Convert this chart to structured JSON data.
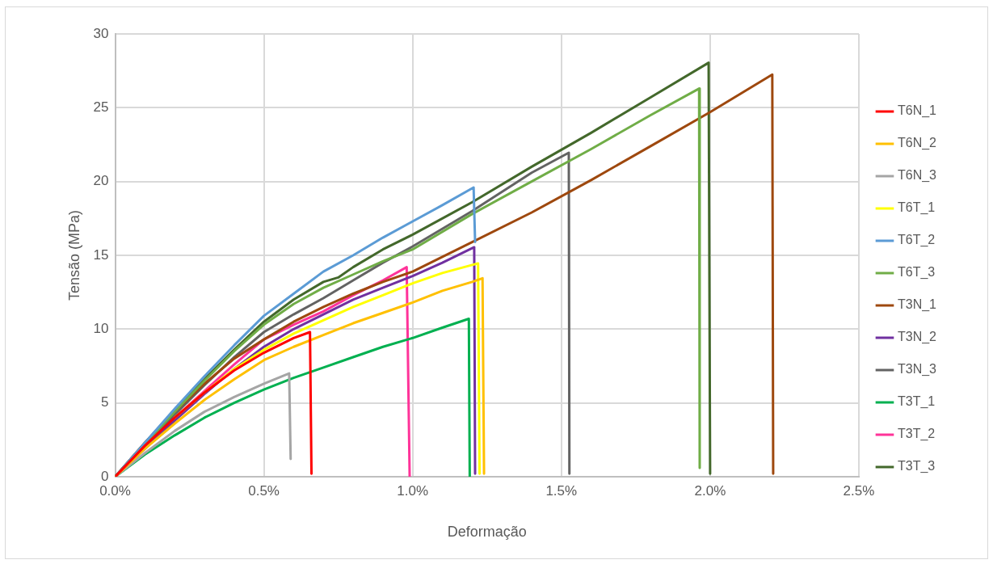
{
  "chart_data": {
    "type": "line",
    "xlabel": "Deformação",
    "ylabel": "Tensão (MPa)",
    "xlim": [
      0,
      2.5
    ],
    "xticks": [
      {
        "value": 0,
        "label": "0.0%"
      },
      {
        "value": 0.5,
        "label": "0.5%"
      },
      {
        "value": 1,
        "label": "1.0%"
      },
      {
        "value": 1.5,
        "label": "1.5%"
      },
      {
        "value": 2,
        "label": "2.0%"
      },
      {
        "value": 2.5,
        "label": "2.5%"
      }
    ],
    "ylim": [
      0,
      30
    ],
    "yticks": [
      0,
      5,
      10,
      15,
      20,
      25,
      30
    ],
    "grid": true,
    "legend": "right",
    "marker": "none",
    "line_style": "solid",
    "series": [
      {
        "name": "T6N_1",
        "color": "#ff0000",
        "x": [
          0,
          0.1,
          0.2,
          0.3,
          0.4,
          0.5,
          0.6,
          0.655,
          0.66
        ],
        "values": [
          0,
          2.1,
          4.0,
          5.7,
          7.2,
          8.4,
          9.4,
          9.8,
          0.2
        ]
      },
      {
        "name": "T6N_2",
        "color": "#ffc000",
        "x": [
          0,
          0.1,
          0.2,
          0.3,
          0.4,
          0.5,
          0.6,
          0.7,
          0.8,
          0.9,
          1.0,
          1.1,
          1.2,
          1.235,
          1.24
        ],
        "values": [
          0,
          1.9,
          3.6,
          5.2,
          6.6,
          7.9,
          8.8,
          9.6,
          10.4,
          11.1,
          11.8,
          12.6,
          13.2,
          13.45,
          0.2
        ]
      },
      {
        "name": "T6N_3",
        "color": "#a5a5a5",
        "x": [
          0,
          0.1,
          0.2,
          0.3,
          0.4,
          0.5,
          0.585,
          0.59
        ],
        "values": [
          0,
          1.6,
          3.1,
          4.4,
          5.4,
          6.3,
          7.0,
          1.2
        ]
      },
      {
        "name": "T6T_1",
        "color": "#ffff00",
        "x": [
          0.2,
          0.3,
          0.4,
          0.5,
          0.6,
          0.7,
          0.8,
          0.9,
          1.0,
          1.1,
          1.2,
          1.22,
          1.225
        ],
        "values": [
          4.0,
          5.7,
          7.3,
          8.6,
          9.7,
          10.6,
          11.5,
          12.3,
          13.1,
          13.8,
          14.35,
          14.45,
          0.2
        ]
      },
      {
        "name": "T6T_2",
        "color": "#5b9bd5",
        "x": [
          0,
          0.1,
          0.2,
          0.3,
          0.4,
          0.5,
          0.6,
          0.7,
          0.8,
          0.9,
          1.0,
          1.1,
          1.205,
          1.21
        ],
        "values": [
          0,
          2.3,
          4.6,
          6.8,
          8.9,
          10.9,
          12.4,
          13.9,
          15.0,
          16.2,
          17.3,
          18.4,
          19.6,
          15.9
        ]
      },
      {
        "name": "T6T_3",
        "color": "#70ad47",
        "x": [
          0,
          0.1,
          0.2,
          0.3,
          0.4,
          0.5,
          0.6,
          0.7,
          0.8,
          0.9,
          1.0,
          1.2,
          1.4,
          1.6,
          1.8,
          1.963,
          1.965
        ],
        "values": [
          0,
          2.2,
          4.4,
          6.5,
          8.5,
          10.3,
          11.7,
          12.8,
          13.7,
          14.6,
          15.4,
          17.8,
          20.0,
          22.2,
          24.5,
          26.3,
          0.6
        ]
      },
      {
        "name": "T3N_1",
        "color": "#9e480e",
        "x": [
          0,
          0.1,
          0.2,
          0.3,
          0.4,
          0.5,
          0.6,
          0.7,
          0.8,
          0.9,
          1.0,
          1.2,
          1.4,
          1.6,
          1.8,
          2.0,
          2.209,
          2.212
        ],
        "values": [
          0,
          2.3,
          4.4,
          6.3,
          8.0,
          9.3,
          10.5,
          11.5,
          12.4,
          13.2,
          13.9,
          15.9,
          17.9,
          20.1,
          22.4,
          24.7,
          27.25,
          0.2
        ]
      },
      {
        "name": "T3N_2",
        "color": "#7030a0",
        "x": [
          0,
          0.1,
          0.2,
          0.3,
          0.4,
          0.5,
          0.6,
          0.7,
          0.8,
          0.9,
          1.0,
          1.1,
          1.207,
          1.21
        ],
        "values": [
          0,
          1.9,
          3.8,
          5.6,
          7.3,
          8.8,
          10.0,
          11.0,
          12.0,
          12.8,
          13.6,
          14.5,
          15.55,
          0.2
        ]
      },
      {
        "name": "T3N_3",
        "color": "#636363",
        "x": [
          0,
          0.1,
          0.2,
          0.3,
          0.4,
          0.5,
          0.6,
          0.7,
          0.8,
          0.9,
          1.0,
          1.2,
          1.4,
          1.525,
          1.527
        ],
        "values": [
          0,
          2.1,
          4.2,
          6.2,
          8.1,
          9.8,
          11.0,
          12.1,
          13.3,
          14.5,
          15.6,
          18.0,
          20.6,
          21.95,
          0.2
        ]
      },
      {
        "name": "T3T_1",
        "color": "#00b050",
        "x": [
          0,
          0.1,
          0.2,
          0.3,
          0.4,
          0.5,
          0.6,
          0.7,
          0.8,
          0.9,
          1.0,
          1.1,
          1.189,
          1.192
        ],
        "values": [
          0,
          1.5,
          2.8,
          4.0,
          5.0,
          5.9,
          6.7,
          7.4,
          8.1,
          8.8,
          9.4,
          10.1,
          10.7,
          0
        ]
      },
      {
        "name": "T3T_2",
        "color": "#ff3399",
        "x": [
          0,
          0.1,
          0.2,
          0.3,
          0.4,
          0.5,
          0.6,
          0.7,
          0.8,
          0.9,
          0.98,
          0.99
        ],
        "values": [
          0,
          2.0,
          4.0,
          5.8,
          7.6,
          9.3,
          10.3,
          11.2,
          12.3,
          13.3,
          14.2,
          0
        ]
      },
      {
        "name": "T3T_3",
        "color": "#43682b",
        "x": [
          0,
          0.1,
          0.2,
          0.3,
          0.4,
          0.5,
          0.6,
          0.7,
          0.75,
          0.8,
          0.9,
          1.0,
          1.2,
          1.4,
          1.6,
          1.8,
          1.995,
          2.0
        ],
        "values": [
          0,
          2.3,
          4.5,
          6.6,
          8.6,
          10.5,
          12.0,
          13.2,
          13.5,
          14.2,
          15.4,
          16.4,
          18.6,
          21.0,
          23.3,
          25.7,
          28.05,
          0.2
        ]
      }
    ]
  }
}
